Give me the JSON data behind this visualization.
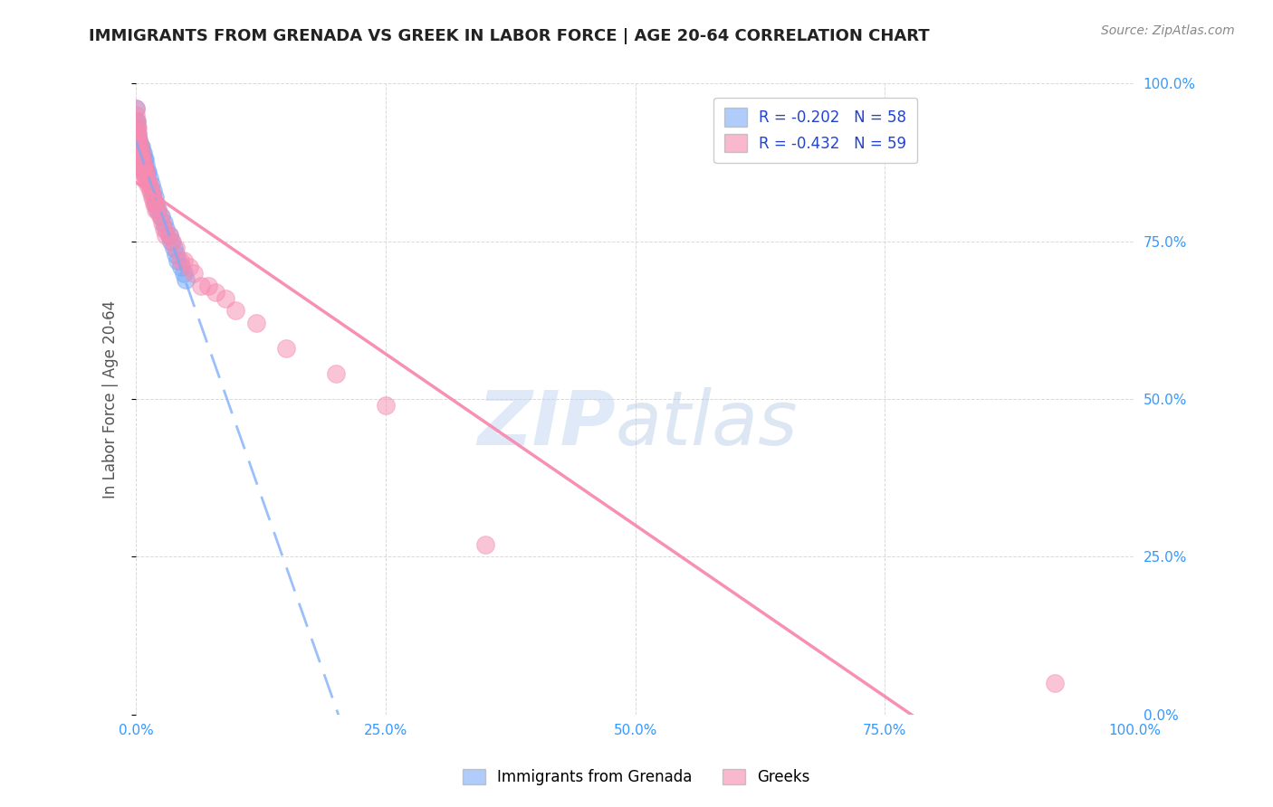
{
  "title": "IMMIGRANTS FROM GRENADA VS GREEK IN LABOR FORCE | AGE 20-64 CORRELATION CHART",
  "source": "Source: ZipAtlas.com",
  "ylabel": "In Labor Force | Age 20-64",
  "xlim": [
    0.0,
    1.0
  ],
  "ylim": [
    0.0,
    1.0
  ],
  "xticks": [
    0.0,
    0.25,
    0.5,
    0.75,
    1.0
  ],
  "yticks": [
    0.0,
    0.25,
    0.5,
    0.75,
    1.0
  ],
  "xtick_labels": [
    "0.0%",
    "25.0%",
    "50.0%",
    "75.0%",
    "100.0%"
  ],
  "ytick_labels_right": [
    "0.0%",
    "25.0%",
    "50.0%",
    "75.0%",
    "100.0%"
  ],
  "grenada_color": "#7aabf7",
  "greek_color": "#f78ab0",
  "grenada_R": -0.202,
  "grenada_N": 58,
  "greek_R": -0.432,
  "greek_N": 59,
  "legend_label_1": "Immigrants from Grenada",
  "legend_label_2": "Greeks",
  "grenada_x": [
    0.0,
    0.0,
    0.0,
    0.0,
    0.0,
    0.0,
    0.0,
    0.0,
    0.001,
    0.001,
    0.001,
    0.001,
    0.001,
    0.001,
    0.001,
    0.002,
    0.002,
    0.002,
    0.002,
    0.002,
    0.003,
    0.003,
    0.003,
    0.003,
    0.004,
    0.004,
    0.004,
    0.005,
    0.005,
    0.005,
    0.006,
    0.006,
    0.007,
    0.007,
    0.008,
    0.008,
    0.009,
    0.01,
    0.01,
    0.011,
    0.012,
    0.013,
    0.015,
    0.017,
    0.019,
    0.02,
    0.022,
    0.025,
    0.028,
    0.03,
    0.033,
    0.035,
    0.038,
    0.04,
    0.042,
    0.045,
    0.048,
    0.05
  ],
  "grenada_y": [
    0.96,
    0.94,
    0.92,
    0.91,
    0.9,
    0.89,
    0.88,
    0.87,
    0.94,
    0.93,
    0.91,
    0.9,
    0.89,
    0.88,
    0.87,
    0.92,
    0.91,
    0.9,
    0.89,
    0.88,
    0.91,
    0.9,
    0.89,
    0.88,
    0.9,
    0.89,
    0.88,
    0.9,
    0.89,
    0.88,
    0.89,
    0.88,
    0.89,
    0.88,
    0.88,
    0.87,
    0.88,
    0.87,
    0.86,
    0.86,
    0.86,
    0.85,
    0.84,
    0.83,
    0.82,
    0.81,
    0.8,
    0.79,
    0.78,
    0.77,
    0.76,
    0.75,
    0.74,
    0.73,
    0.72,
    0.71,
    0.7,
    0.69
  ],
  "greek_x": [
    0.0,
    0.0,
    0.001,
    0.001,
    0.001,
    0.002,
    0.002,
    0.002,
    0.003,
    0.003,
    0.003,
    0.004,
    0.004,
    0.004,
    0.005,
    0.005,
    0.006,
    0.006,
    0.007,
    0.007,
    0.008,
    0.008,
    0.009,
    0.009,
    0.01,
    0.01,
    0.011,
    0.012,
    0.013,
    0.014,
    0.015,
    0.016,
    0.017,
    0.018,
    0.019,
    0.02,
    0.022,
    0.024,
    0.026,
    0.028,
    0.03,
    0.033,
    0.036,
    0.04,
    0.044,
    0.048,
    0.053,
    0.058,
    0.065,
    0.072,
    0.08,
    0.09,
    0.1,
    0.12,
    0.15,
    0.2,
    0.25,
    0.35,
    0.92
  ],
  "greek_y": [
    0.96,
    0.95,
    0.94,
    0.93,
    0.92,
    0.93,
    0.92,
    0.91,
    0.91,
    0.9,
    0.89,
    0.9,
    0.89,
    0.88,
    0.89,
    0.88,
    0.88,
    0.87,
    0.87,
    0.86,
    0.87,
    0.86,
    0.86,
    0.85,
    0.86,
    0.85,
    0.85,
    0.84,
    0.84,
    0.83,
    0.83,
    0.82,
    0.82,
    0.81,
    0.81,
    0.8,
    0.8,
    0.79,
    0.78,
    0.77,
    0.76,
    0.76,
    0.75,
    0.74,
    0.72,
    0.72,
    0.71,
    0.7,
    0.68,
    0.68,
    0.67,
    0.66,
    0.64,
    0.62,
    0.58,
    0.54,
    0.49,
    0.27,
    0.05
  ],
  "background_color": "#ffffff",
  "grid_color": "#d0d0d0",
  "title_color": "#222222",
  "source_color": "#888888",
  "ylabel_color": "#555555",
  "tick_color_right": "#3399ff",
  "tick_color_bottom": "#3399ff",
  "watermark_zip_color": "#b8d0f0",
  "watermark_atlas_color": "#a0bce0"
}
